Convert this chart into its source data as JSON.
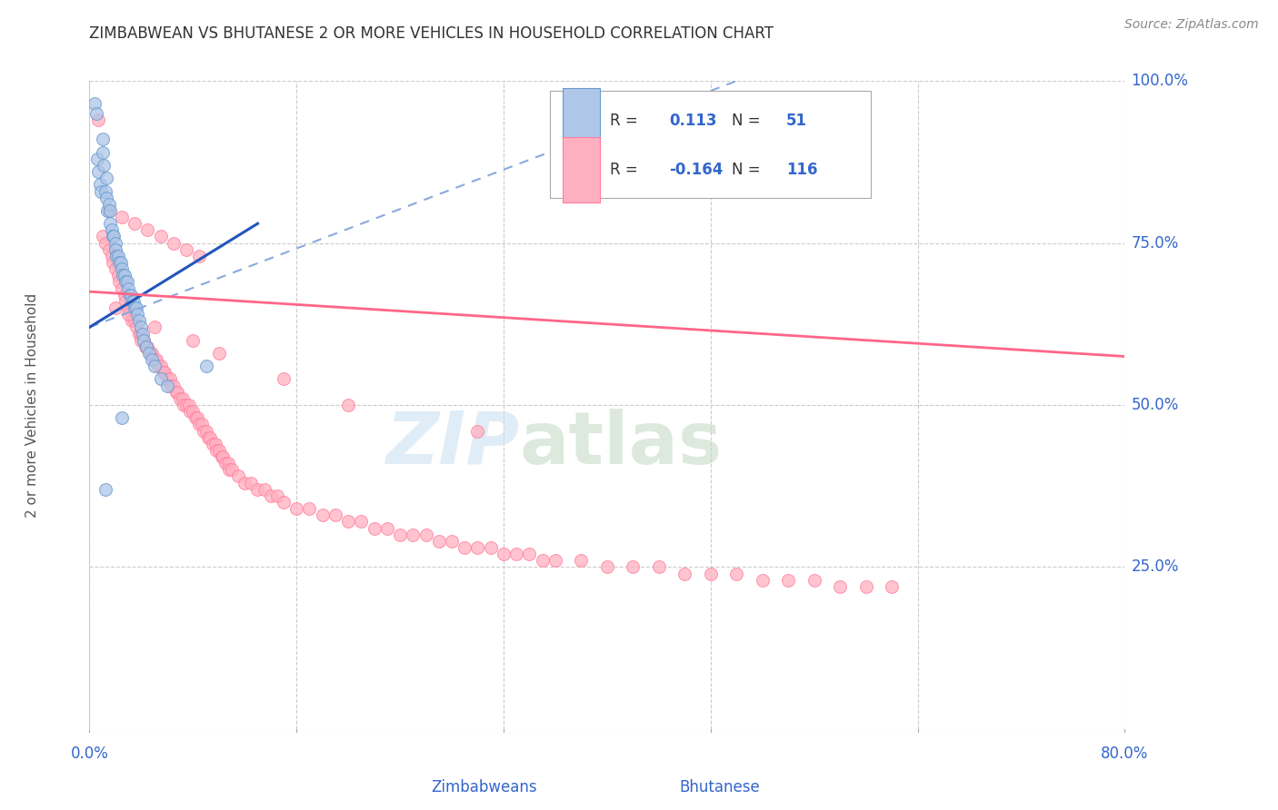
{
  "title": "ZIMBABWEAN VS BHUTANESE 2 OR MORE VEHICLES IN HOUSEHOLD CORRELATION CHART",
  "source": "Source: ZipAtlas.com",
  "ylabel": "2 or more Vehicles in Household",
  "ytick_labels": [
    "",
    "25.0%",
    "50.0%",
    "75.0%",
    "100.0%"
  ],
  "ytick_vals": [
    0.0,
    0.25,
    0.5,
    0.75,
    1.0
  ],
  "xtick_labels": [
    "0.0%",
    "",
    "",
    "",
    "",
    "80.0%"
  ],
  "xtick_vals": [
    0.0,
    0.16,
    0.32,
    0.48,
    0.64,
    0.8
  ],
  "xlim": [
    0.0,
    0.8
  ],
  "ylim": [
    0.0,
    1.0
  ],
  "background_color": "#ffffff",
  "grid_color": "#cccccc",
  "grid_style": "--",
  "zimbabwean_color": "#aec6e8",
  "bhutanese_color": "#ffb0c0",
  "zimbabwean_edge": "#6699cc",
  "bhutanese_edge": "#ff80a0",
  "zim_trendline_color": "#2255bb",
  "bhu_trendline_color": "#ff6688",
  "zim_dash_color": "#88aadd",
  "title_color": "#333333",
  "axis_label_color": "#3366cc",
  "source_color": "#888888",
  "legend_box_color": "#eeeeee",
  "legend_border_color": "#aaaaaa",
  "watermark_zip_color": "#c8dff0",
  "watermark_atlas_color": "#c0d8c0",
  "zimbabwean_seed": 42,
  "bhutanese_seed": 7,
  "zim_n": 51,
  "bhu_n": 116,
  "marker_size": 100,
  "marker_alpha": 0.75
}
